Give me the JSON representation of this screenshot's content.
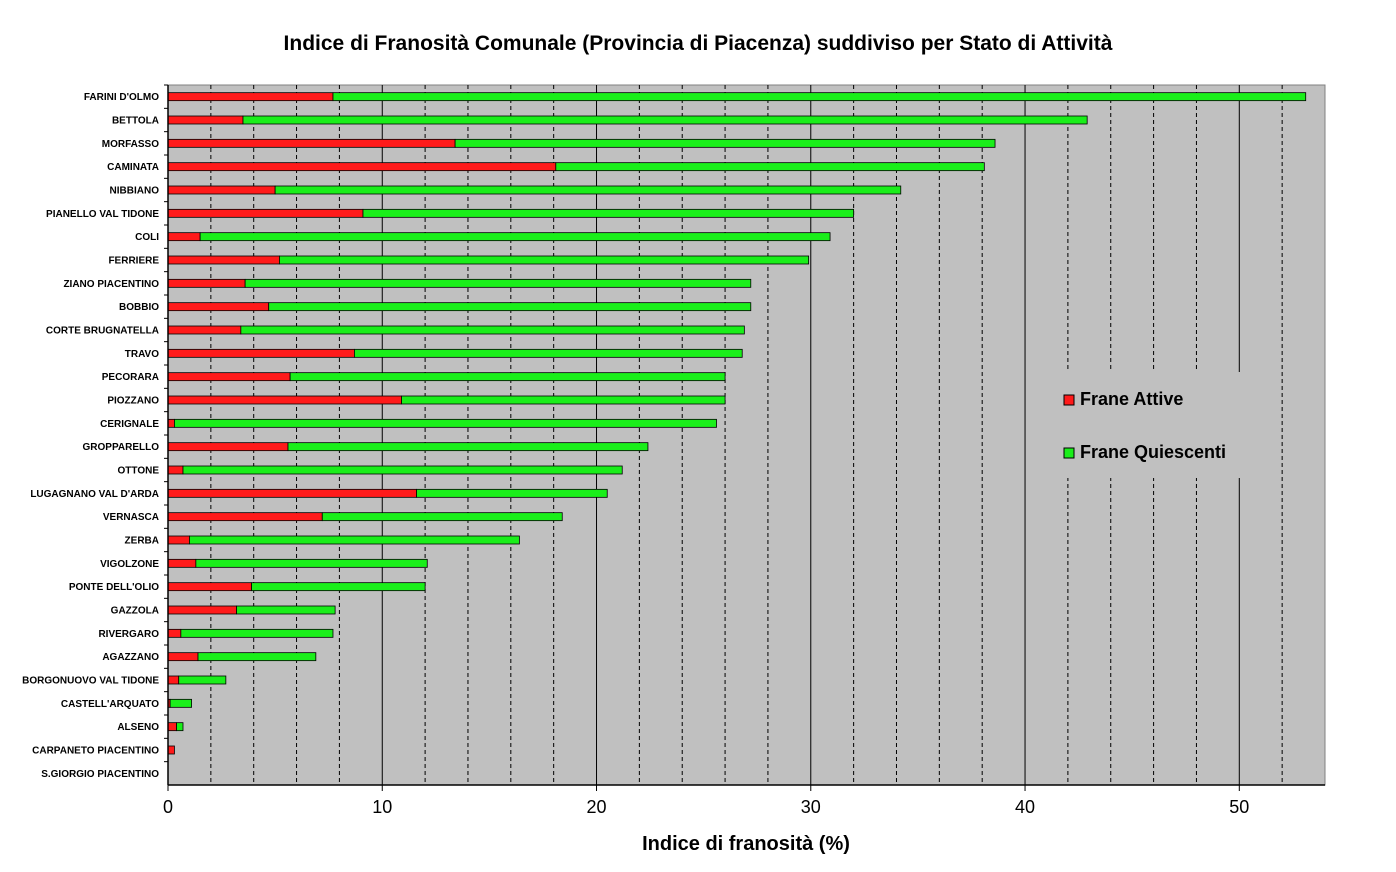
{
  "chart_data": {
    "type": "bar",
    "orientation": "horizontal",
    "stacked": true,
    "title": "Indice di Franosità Comunale (Provincia di Piacenza) suddiviso per Stato di Attività",
    "xlabel": "Indice di franosità (%)",
    "ylabel": "",
    "xlim": [
      0,
      54
    ],
    "xticks": [
      0,
      10,
      20,
      30,
      40,
      50
    ],
    "grid": "vertical",
    "legend_position": "right",
    "colors": {
      "background": "#c0c0c0",
      "active": "#ff1a1a",
      "quiescent": "#1aee1a"
    },
    "categories": [
      "FARINI D'OLMO",
      "BETTOLA",
      "MORFASSO",
      "CAMINATA",
      "NIBBIANO",
      "PIANELLO VAL TIDONE",
      "COLI",
      "FERRIERE",
      "ZIANO PIACENTINO",
      "BOBBIO",
      "CORTE BRUGNATELLA",
      "TRAVO",
      "PECORARA",
      "PIOZZANO",
      "CERIGNALE",
      "GROPPARELLO",
      "OTTONE",
      "LUGAGNANO VAL D'ARDA",
      "VERNASCA",
      "ZERBA",
      "VIGOLZONE",
      "PONTE DELL'OLIO",
      "GAZZOLA",
      "RIVERGARO",
      "AGAZZANO",
      "BORGONUOVO VAL TIDONE",
      "CASTELL'ARQUATO",
      "ALSENO",
      "CARPANETO PIACENTINO",
      "S.GIORGIO PIACENTINO"
    ],
    "series": [
      {
        "name": "Frane Attive",
        "values": [
          7.7,
          3.5,
          13.4,
          18.1,
          5.0,
          9.1,
          1.5,
          5.2,
          3.6,
          4.7,
          3.4,
          8.7,
          5.7,
          10.9,
          0.3,
          5.6,
          0.7,
          11.6,
          7.2,
          1.0,
          1.3,
          3.9,
          3.2,
          0.6,
          1.4,
          0.5,
          0.1,
          0.4,
          0.3,
          0.0
        ]
      },
      {
        "name": "Frane Quiescenti",
        "values": [
          45.4,
          39.4,
          25.2,
          20.0,
          29.2,
          22.9,
          29.4,
          24.7,
          23.6,
          22.5,
          23.5,
          18.1,
          20.3,
          15.1,
          25.3,
          16.8,
          20.5,
          8.9,
          11.2,
          15.4,
          10.8,
          8.1,
          4.6,
          7.1,
          5.5,
          2.2,
          1.0,
          0.3,
          0.0,
          0.0
        ]
      }
    ]
  }
}
